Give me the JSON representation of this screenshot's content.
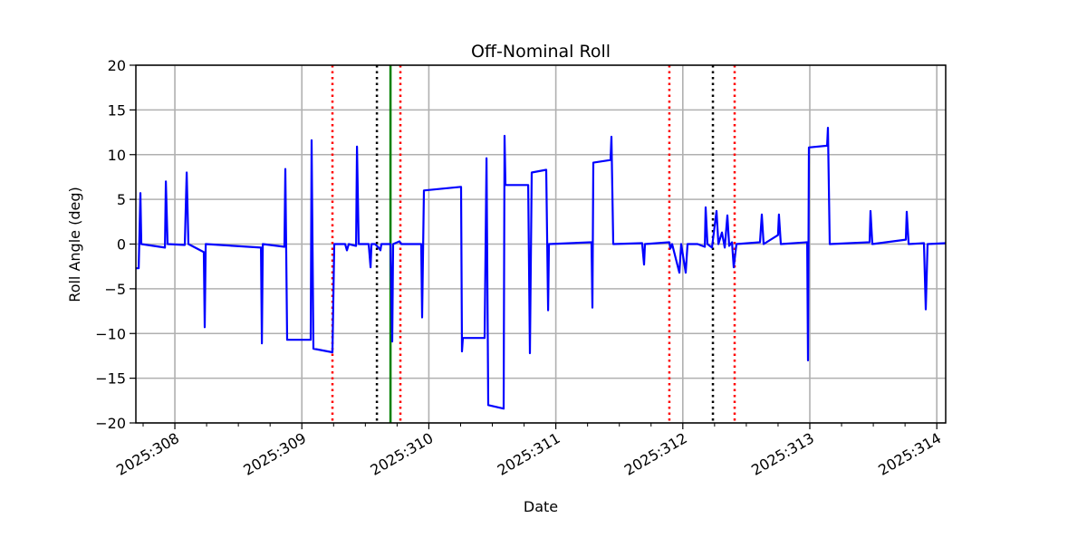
{
  "chart_data": {
    "type": "line",
    "title": "Off-Nominal Roll",
    "xlabel": "Date",
    "ylabel": "Roll Angle (deg)",
    "xlim": [
      307.693,
      314.07
    ],
    "ylim": [
      -20,
      20
    ],
    "grid": true,
    "x_ticks": [
      308,
      309,
      310,
      311,
      312,
      313,
      314
    ],
    "x_tick_labels": [
      "2025:308",
      "2025:309",
      "2025:310",
      "2025:311",
      "2025:312",
      "2025:313",
      "2025:314"
    ],
    "x_minor_step": 0.25,
    "y_ticks": [
      -20,
      -15,
      -10,
      -5,
      0,
      5,
      10,
      15,
      20
    ],
    "y_tick_labels": [
      "−20",
      "−15",
      "−10",
      "−5",
      "0",
      "5",
      "10",
      "15",
      "20"
    ],
    "series": [
      {
        "name": "roll",
        "color": "#0000ff",
        "x": [
          307.693,
          307.715,
          307.729,
          307.736,
          307.922,
          307.929,
          307.943,
          308.078,
          308.093,
          308.107,
          308.228,
          308.235,
          308.243,
          308.678,
          308.685,
          308.692,
          308.863,
          308.87,
          308.884,
          309.07,
          309.077,
          309.091,
          309.241,
          309.255,
          309.341,
          309.355,
          309.369,
          309.427,
          309.434,
          309.448,
          309.526,
          309.541,
          309.548,
          309.576,
          309.605,
          309.619,
          309.626,
          309.698,
          309.712,
          309.719,
          309.769,
          309.783,
          309.94,
          309.947,
          309.961,
          310.254,
          310.261,
          310.268,
          310.439,
          310.454,
          310.468,
          310.589,
          310.596,
          310.603,
          310.782,
          310.796,
          310.81,
          310.924,
          310.939,
          310.946,
          311.281,
          311.288,
          311.295,
          311.431,
          311.438,
          311.452,
          311.68,
          311.695,
          311.702,
          311.894,
          311.902,
          311.916,
          311.973,
          311.987,
          312.023,
          312.037,
          312.116,
          312.173,
          312.18,
          312.194,
          312.23,
          312.265,
          312.28,
          312.308,
          312.33,
          312.351,
          312.365,
          312.387,
          312.401,
          312.422,
          312.608,
          312.622,
          312.636,
          312.75,
          312.757,
          312.772,
          312.979,
          312.986,
          312.993,
          313.136,
          313.143,
          313.157,
          313.471,
          313.478,
          313.492,
          313.756,
          313.763,
          313.778,
          313.899,
          313.913,
          313.927,
          314.07
        ],
        "y": [
          -2.7,
          -2.7,
          5.7,
          0,
          -0.4,
          7.0,
          0,
          -0.1,
          8.0,
          0,
          -0.9,
          -9.3,
          0,
          -0.4,
          -11.1,
          0,
          -0.3,
          8.4,
          -10.7,
          -10.7,
          11.6,
          -11.7,
          -12.1,
          0,
          0,
          -0.7,
          0,
          -0.2,
          10.9,
          0,
          0,
          -2.6,
          0,
          0,
          -0.4,
          -0.7,
          0,
          0,
          -10.9,
          0,
          0.3,
          0,
          0,
          -8.2,
          6.0,
          6.4,
          -12.0,
          -10.5,
          -10.5,
          9.6,
          -18.0,
          -18.4,
          12.1,
          6.6,
          6.6,
          -12.2,
          8.0,
          8.3,
          -7.4,
          0,
          0.2,
          -7.1,
          9.1,
          9.4,
          12.0,
          0,
          0.1,
          -2.3,
          0,
          0.2,
          -0.5,
          0,
          -3.2,
          0,
          -3.2,
          0,
          0,
          -0.3,
          4.1,
          0,
          -0.4,
          3.7,
          0,
          1.3,
          -0.4,
          3.2,
          -0.2,
          0.2,
          -2.6,
          0,
          0.2,
          3.3,
          0,
          1.0,
          3.3,
          0,
          0.2,
          -13.0,
          10.8,
          11.0,
          13.0,
          0,
          0.2,
          3.7,
          0,
          0.5,
          3.6,
          0,
          0.1,
          -7.3,
          0,
          0.1
        ]
      }
    ],
    "vertical_lines": [
      {
        "x": 309.241,
        "color": "#ff0000",
        "style": "dotted"
      },
      {
        "x": 309.776,
        "color": "#ff0000",
        "style": "dotted"
      },
      {
        "x": 311.894,
        "color": "#ff0000",
        "style": "dotted"
      },
      {
        "x": 312.408,
        "color": "#ff0000",
        "style": "dotted"
      },
      {
        "x": 309.591,
        "color": "#000000",
        "style": "dotted"
      },
      {
        "x": 312.237,
        "color": "#000000",
        "style": "dotted"
      },
      {
        "x": 309.698,
        "color": "#008000",
        "style": "solid"
      }
    ]
  }
}
